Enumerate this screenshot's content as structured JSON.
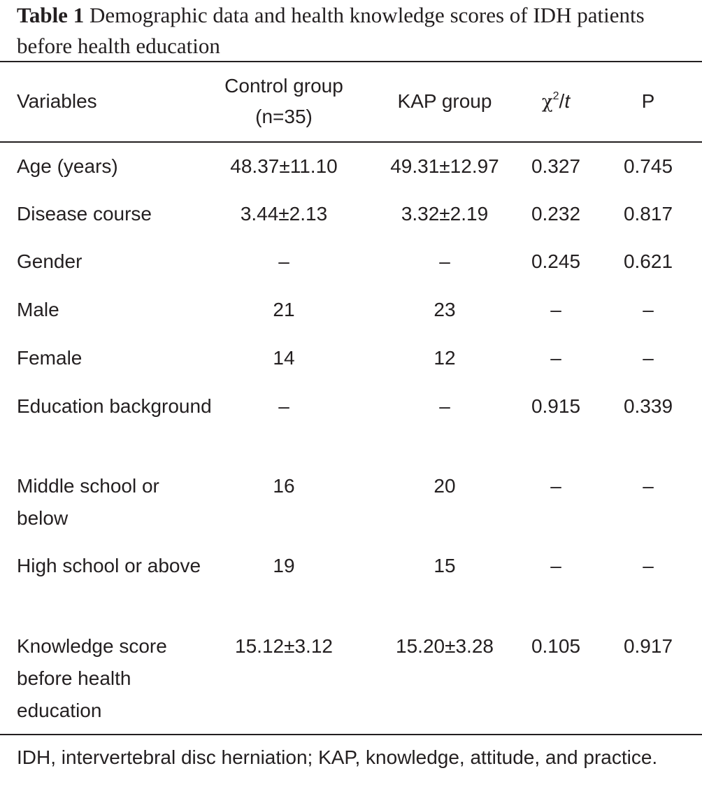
{
  "caption": {
    "label": "Table 1",
    "text": "Demographic data and health knowledge scores of IDH patients before health education"
  },
  "header": {
    "variables": "Variables",
    "control_line1": "Control group",
    "control_line2": "(n=35)",
    "kap": "KAP group",
    "stat_chi": "χ",
    "stat_sup": "2",
    "stat_slash": "/",
    "stat_t": "t",
    "p": "P"
  },
  "rows": [
    {
      "variable": "Age (years)",
      "control": "48.37±11.10",
      "kap": "49.31±12.97",
      "stat": "0.327",
      "p": "0.745"
    },
    {
      "variable": "Disease course",
      "control": "3.44±2.13",
      "kap": "3.32±2.19",
      "stat": "0.232",
      "p": "0.817"
    },
    {
      "variable": "Gender",
      "control": "–",
      "kap": "–",
      "stat": "0.245",
      "p": "0.621"
    },
    {
      "variable": "Male",
      "control": "21",
      "kap": "23",
      "stat": "–",
      "p": "–"
    },
    {
      "variable": "Female",
      "control": "14",
      "kap": "12",
      "stat": "–",
      "p": "–"
    },
    {
      "variable": "Education background",
      "control": "–",
      "kap": "–",
      "stat": "0.915",
      "p": "0.339"
    },
    {
      "variable": "Middle school or below",
      "control": "16",
      "kap": "20",
      "stat": "–",
      "p": "–"
    },
    {
      "variable": "High school or above",
      "control": "19",
      "kap": "15",
      "stat": "–",
      "p": "–"
    },
    {
      "variable": "Knowledge score before health education",
      "control": "15.12±3.12",
      "kap": "15.20±3.28",
      "stat": "0.105",
      "p": "0.917"
    }
  ],
  "footnote": "IDH, intervertebral disc herniation; KAP, knowledge, attitude, and practice."
}
